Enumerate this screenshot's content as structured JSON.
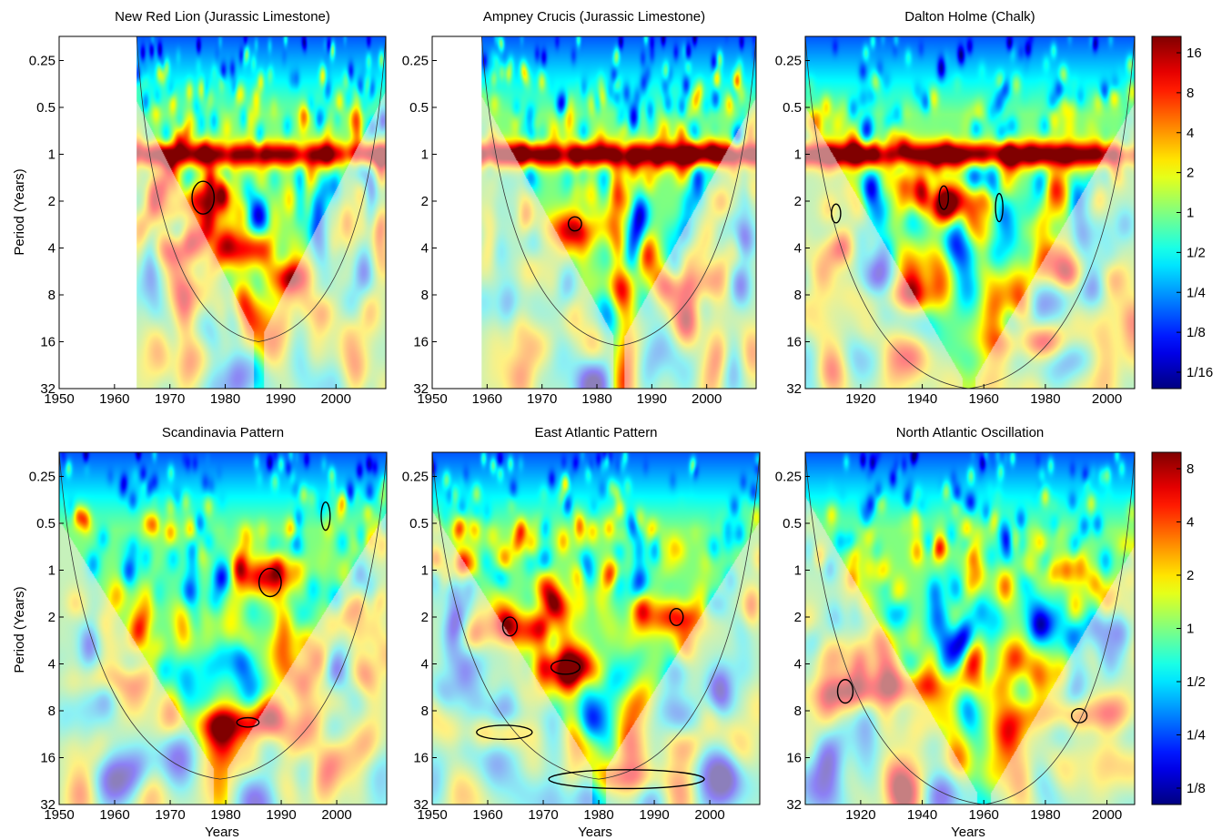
{
  "figure": {
    "ylabel": "Period (Years)",
    "xlabel": "Years"
  },
  "colorbars": [
    {
      "ticks": [
        "16",
        "8",
        "4",
        "2",
        "1",
        "1/2",
        "1/4",
        "1/8",
        "1/16"
      ]
    },
    {
      "ticks": [
        "8",
        "4",
        "2",
        "1",
        "1/2",
        "1/4",
        "1/8"
      ]
    }
  ],
  "chart_data": [
    {
      "type": "heatmap",
      "title": "New Red Lion (Jurassic Limestone)",
      "xlim": [
        1950,
        2009
      ],
      "data_start": 1964,
      "xticks": [
        1950,
        1960,
        1970,
        1980,
        1990,
        2000
      ],
      "ylim": [
        0.175,
        32
      ],
      "yscale": "log2",
      "yticks": [
        "0.25",
        "0.5",
        "1",
        "2",
        "4",
        "8",
        "16",
        "32"
      ],
      "coi_apex_year": 1986,
      "coi_apex_period": 16,
      "annual_band": {
        "period": 1,
        "strength": 0.9
      },
      "hotspots": [
        {
          "year": 1976,
          "period": 2,
          "power": 0.85
        },
        {
          "year": 1993,
          "period": 6,
          "power": 0.95
        },
        {
          "year": 1985,
          "period": 4,
          "power": 0.75
        },
        {
          "year": 1970,
          "period": 4,
          "power": 0.6
        }
      ],
      "significant_regions": [
        {
          "year": 1976,
          "period": 1.9,
          "dyear": 2.0,
          "dperiod": 0.35
        }
      ]
    },
    {
      "type": "heatmap",
      "title": "Ampney Crucis (Jurassic Limestone)",
      "xlim": [
        1950,
        2009
      ],
      "data_start": 1959,
      "xticks": [
        1950,
        1960,
        1970,
        1980,
        1990,
        2000
      ],
      "ylim": [
        0.175,
        32
      ],
      "yscale": "log2",
      "yticks": [
        "0.25",
        "0.5",
        "1",
        "2",
        "4",
        "8",
        "16",
        "32"
      ],
      "coi_apex_year": 1984,
      "coi_apex_period": 17,
      "annual_band": {
        "period": 1,
        "strength": 1.0
      },
      "hotspots": [
        {
          "year": 1976,
          "period": 3,
          "power": 0.85
        },
        {
          "year": 1995,
          "period": 7,
          "power": 0.7
        }
      ],
      "significant_regions": [
        {
          "year": 1976,
          "period": 2.8,
          "dyear": 1.2,
          "dperiod": 0.15
        }
      ]
    },
    {
      "type": "heatmap",
      "title": "Dalton Holme (Chalk)",
      "xlim": [
        1902,
        2009
      ],
      "data_start": 1902,
      "xticks": [
        1920,
        1940,
        1960,
        1980,
        2000
      ],
      "ylim": [
        0.175,
        32
      ],
      "yscale": "log2",
      "yticks": [
        "0.25",
        "0.5",
        "1",
        "2",
        "4",
        "8",
        "16",
        "32"
      ],
      "coi_apex_year": 1955,
      "coi_apex_period": 32,
      "annual_band": {
        "period": 1,
        "strength": 0.95
      },
      "hotspots": [
        {
          "year": 1915,
          "period": 4,
          "power": 0.8
        },
        {
          "year": 1948,
          "period": 2,
          "power": 0.85
        },
        {
          "year": 1975,
          "period": 16,
          "power": 0.95
        },
        {
          "year": 1990,
          "period": 6,
          "power": 0.8
        },
        {
          "year": 1930,
          "period": 8,
          "power": 0.7
        }
      ],
      "significant_regions": [
        {
          "year": 1912,
          "period": 2.4,
          "dyear": 1.5,
          "dperiod": 0.2
        },
        {
          "year": 1947,
          "period": 1.9,
          "dyear": 1.5,
          "dperiod": 0.25
        },
        {
          "year": 1965,
          "period": 2.2,
          "dyear": 1.2,
          "dperiod": 0.3
        }
      ]
    },
    {
      "type": "heatmap",
      "title": "Scandinavia Pattern",
      "xlim": [
        1950,
        2009
      ],
      "data_start": 1950,
      "xticks": [
        1950,
        1960,
        1970,
        1980,
        1990,
        2000
      ],
      "ylim": [
        0.175,
        32
      ],
      "yscale": "log2",
      "yticks": [
        "0.25",
        "0.5",
        "1",
        "2",
        "4",
        "8",
        "16",
        "32"
      ],
      "coi_apex_year": 1979,
      "coi_apex_period": 22,
      "annual_band": null,
      "hotspots": [
        {
          "year": 1987,
          "period": 1.1,
          "power": 0.85
        },
        {
          "year": 1982,
          "period": 9.5,
          "power": 0.75
        },
        {
          "year": 1960,
          "period": 5,
          "power": 0.65
        }
      ],
      "significant_regions": [
        {
          "year": 1988,
          "period": 1.2,
          "dyear": 2.0,
          "dperiod": 0.3
        },
        {
          "year": 1984,
          "period": 9.5,
          "dyear": 2.0,
          "dperiod": 0.1
        },
        {
          "year": 1998,
          "period": 0.45,
          "dyear": 0.8,
          "dperiod": 0.3
        }
      ]
    },
    {
      "type": "heatmap",
      "title": "East Atlantic Pattern",
      "xlim": [
        1950,
        2009
      ],
      "data_start": 1950,
      "xticks": [
        1950,
        1960,
        1970,
        1980,
        1990,
        2000
      ],
      "ylim": [
        0.175,
        32
      ],
      "yscale": "log2",
      "yticks": [
        "0.25",
        "0.5",
        "1",
        "2",
        "4",
        "8",
        "16",
        "32"
      ],
      "coi_apex_year": 1980,
      "coi_apex_period": 22,
      "annual_band": null,
      "hotspots": [
        {
          "year": 1974,
          "period": 4.2,
          "power": 0.85
        },
        {
          "year": 1994,
          "period": 2,
          "power": 0.8
        },
        {
          "year": 1965,
          "period": 2.4,
          "power": 0.8
        },
        {
          "year": 1962,
          "period": 11,
          "power": 0.9
        },
        {
          "year": 1985,
          "period": 22,
          "power": 0.85
        }
      ],
      "significant_regions": [
        {
          "year": 1974,
          "period": 4.2,
          "dyear": 2.6,
          "dperiod": 0.15
        },
        {
          "year": 1994,
          "period": 2,
          "dyear": 1.2,
          "dperiod": 0.18
        },
        {
          "year": 1964,
          "period": 2.3,
          "dyear": 1.3,
          "dperiod": 0.2
        },
        {
          "year": 1963,
          "period": 11,
          "dyear": 5.0,
          "dperiod": 0.15
        },
        {
          "year": 1985,
          "period": 22,
          "dyear": 14.0,
          "dperiod": 0.2
        }
      ]
    },
    {
      "type": "heatmap",
      "title": "North Atlantic Oscillation",
      "xlim": [
        1902,
        2009
      ],
      "data_start": 1902,
      "xticks": [
        1920,
        1940,
        1960,
        1980,
        2000
      ],
      "ylim": [
        0.175,
        32
      ],
      "yscale": "log2",
      "yticks": [
        "0.25",
        "0.5",
        "1",
        "2",
        "4",
        "8",
        "16",
        "32"
      ],
      "coi_apex_year": 1960,
      "coi_apex_period": 32,
      "annual_band": null,
      "hotspots": [
        {
          "year": 1915,
          "period": 6,
          "power": 0.9
        },
        {
          "year": 1990,
          "period": 8.5,
          "power": 0.85
        },
        {
          "year": 1938,
          "period": 5.5,
          "power": 0.6
        }
      ],
      "significant_regions": [
        {
          "year": 1915,
          "period": 6,
          "dyear": 2.5,
          "dperiod": 0.25
        },
        {
          "year": 1991,
          "period": 8.6,
          "dyear": 2.5,
          "dperiod": 0.15
        }
      ]
    }
  ]
}
